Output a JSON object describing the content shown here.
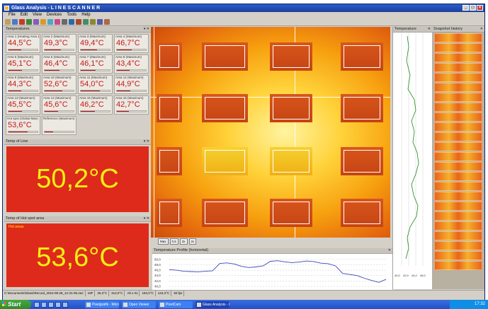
{
  "app": {
    "title": "Glass Analysis - L I N E S C A N N E R",
    "menu": [
      "File",
      "Edit",
      "View",
      "Devices",
      "Tools",
      "Help"
    ]
  },
  "toolbar_icons": [
    "open-icon",
    "save-icon",
    "camera-icon",
    "record-icon",
    "stop-icon",
    "play-icon",
    "zoom-icon",
    "palette-icon",
    "grid-icon",
    "measure-icon",
    "chart-icon",
    "export-icon",
    "print-icon",
    "settings-icon",
    "help-icon"
  ],
  "temperatures_panel": {
    "title": "Temperatures",
    "tiles": [
      {
        "label": "Area 1 (Heating Area 1)",
        "value": "44,5°C",
        "level": 0.45
      },
      {
        "label": "Area 2 (Maximum)",
        "value": "49,3°C",
        "level": 0.55
      },
      {
        "label": "Area 3 (Maximum)",
        "value": "49,4°C",
        "level": 0.55
      },
      {
        "label": "Area 4 (Maximum)",
        "value": "46,7°C",
        "level": 0.5
      },
      {
        "label": "Area 5 (Maximum)",
        "value": "45,1°C",
        "level": 0.47
      },
      {
        "label": "Area 6 (Maximum)",
        "value": "46,4°C",
        "level": 0.5
      },
      {
        "label": "Area 7 (Maximum)",
        "value": "46,1°C",
        "level": 0.5
      },
      {
        "label": "Area 8 (Maximum)",
        "value": "43,4°C",
        "level": 0.43
      },
      {
        "label": "Area 9 (Maximum)",
        "value": "44,3°C",
        "level": 0.45
      },
      {
        "label": "Area 10 (Maximum)",
        "value": "52,6°C",
        "level": 0.62
      },
      {
        "label": "Area 11 (Maximum)",
        "value": "54,0°C",
        "level": 0.66
      },
      {
        "label": "Area 12 (Maximum)",
        "value": "44,9°C",
        "level": 0.46
      },
      {
        "label": "Area 13 (Maximum)",
        "value": "45,5°C",
        "level": 0.47
      },
      {
        "label": "Area 14 (Maximum)",
        "value": "45,6°C",
        "level": 0.47
      },
      {
        "label": "Area 15 (Maximum)",
        "value": "46,2°C",
        "level": 0.49
      },
      {
        "label": "Area 16 (Maximum)",
        "value": "42,7°C",
        "level": 0.41
      },
      {
        "label": "Hot spot (Global Max)",
        "value": "53,6°C",
        "level": 0.65
      },
      {
        "label": "Reference (Maximum)",
        "value": "",
        "level": 0.3
      }
    ]
  },
  "big_display_1": {
    "title": "Temp of Line",
    "value": "50,2°C"
  },
  "big_display_2": {
    "title": "Temp of Hot spot area",
    "subtitle": "Hot areas",
    "value": "53,6°C"
  },
  "image_toolbar": [
    "Max",
    "0,5",
    "3x",
    "2x"
  ],
  "profile_panel": {
    "title": "Temperature Profile (horizontal)",
    "y_ticks": [
      "50,0",
      "48,0",
      "46,0",
      "44,0",
      "42,0",
      "40,0"
    ]
  },
  "vertical_profile_panel": {
    "title": "Temperature"
  },
  "snapshots_panel": {
    "title": "Snapshot history"
  },
  "status_bar": [
    "C:\\Documents\\Glass\\Record_2010-09-28_12-31-05.ravi",
    "19F",
    "26,3°C",
    "313,0°C",
    "Alt x 01",
    "194,0°C",
    "144,3°C",
    "30 fps"
  ],
  "taskbar": {
    "start_label": "Start",
    "tasks": [
      "Pixelgrafik - Micros...",
      "Open Viewer",
      "PixelCam",
      "Glass Analysis - L I N ..."
    ],
    "clock": "17:32"
  },
  "colors": {
    "alarm_bg": "#de2a1a",
    "alarm_text": "#f7ee14",
    "title_blue": "#1c3f9c"
  },
  "chart_data": {
    "type": "line",
    "title": "Temperature Profile (horizontal)",
    "ylim": [
      40,
      51
    ],
    "series": [
      {
        "values": [
          46.2,
          46.0,
          45.6,
          45.5,
          45.4,
          45.6,
          45.8,
          48.5,
          48.7,
          48.3,
          47.4,
          47.0,
          47.2,
          47.6,
          49.3,
          49.5,
          49.1,
          48.8,
          49.0,
          49.4,
          49.2,
          48.6,
          48.4,
          47.6,
          44.8,
          44.4,
          44.0,
          43.0,
          42.2,
          41.5,
          42.6
        ]
      }
    ]
  }
}
